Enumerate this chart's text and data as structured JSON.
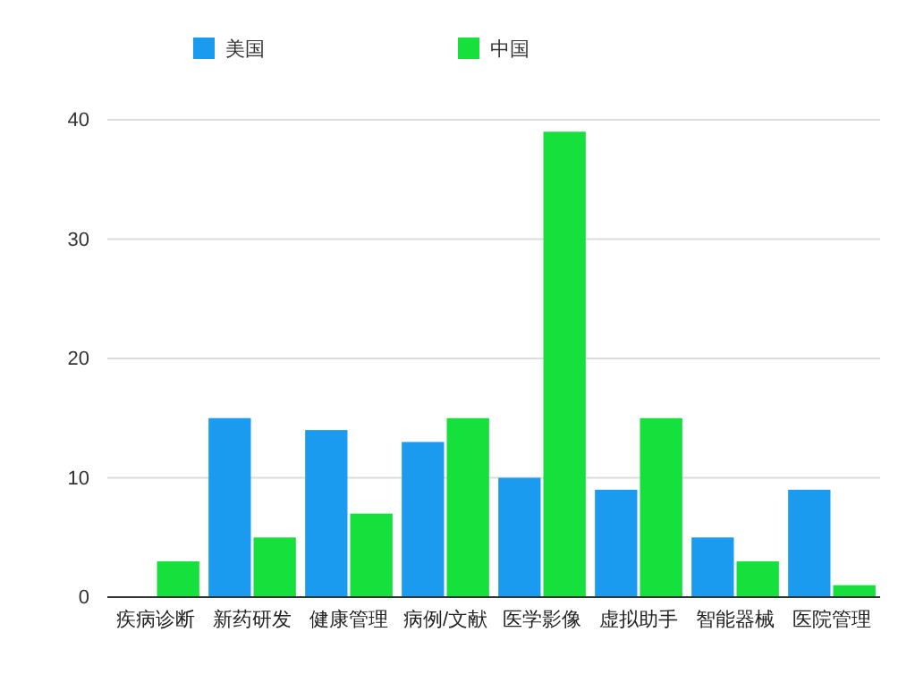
{
  "chart_data": {
    "type": "bar",
    "categories": [
      "疾病诊断",
      "新药研发",
      "健康管理",
      "病例/文献",
      "医学影像",
      "虚拟助手",
      "智能器械",
      "医院管理"
    ],
    "series": [
      {
        "name": "美国",
        "color": "#1a9bf0",
        "values": [
          0,
          15,
          14,
          13,
          10,
          9,
          5,
          9
        ]
      },
      {
        "name": "中国",
        "color": "#16e03c",
        "values": [
          3,
          5,
          7,
          15,
          39,
          15,
          3,
          1
        ]
      }
    ],
    "ylim": [
      0,
      40
    ],
    "yticks": [
      0,
      10,
      20,
      30,
      40
    ],
    "grid": "y",
    "legend": "top"
  }
}
